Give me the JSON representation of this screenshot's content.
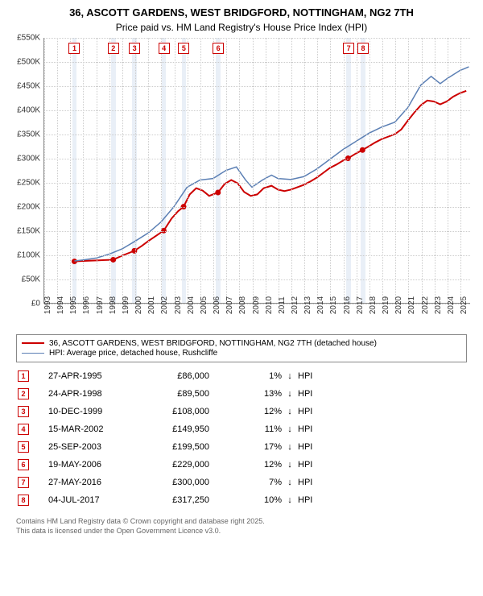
{
  "title_line1": "36, ASCOTT GARDENS, WEST BRIDGFORD, NOTTINGHAM, NG2 7TH",
  "title_line2": "Price paid vs. HM Land Registry's House Price Index (HPI)",
  "chart": {
    "type": "line",
    "background": "#ffffff",
    "grid_color": "#cccccc",
    "axis_color": "#888888",
    "ylim": [
      0,
      550000
    ],
    "y_ticks": [
      0,
      50000,
      100000,
      150000,
      200000,
      250000,
      300000,
      350000,
      400000,
      450000,
      500000,
      550000
    ],
    "y_tick_labels": [
      "£0",
      "£50K",
      "£100K",
      "£150K",
      "£200K",
      "£250K",
      "£300K",
      "£350K",
      "£400K",
      "£450K",
      "£500K",
      "£550K"
    ],
    "x_min_year": 1993,
    "x_max_year": 2025.8,
    "x_tick_years": [
      1993,
      1994,
      1995,
      1996,
      1997,
      1998,
      1999,
      2000,
      2001,
      2002,
      2003,
      2004,
      2005,
      2006,
      2007,
      2008,
      2009,
      2010,
      2011,
      2012,
      2013,
      2014,
      2015,
      2016,
      2017,
      2018,
      2019,
      2020,
      2021,
      2022,
      2023,
      2024,
      2025
    ],
    "sale_band_color": "#dbe5f1",
    "sale_band_width_years": 0.35,
    "series": [
      {
        "name": "price_paid",
        "color": "#cc0000",
        "width": 2,
        "points": [
          [
            1995.32,
            86000
          ],
          [
            1996.0,
            87000
          ],
          [
            1997.0,
            88000
          ],
          [
            1998.31,
            89500
          ],
          [
            1999.0,
            98000
          ],
          [
            1999.94,
            108000
          ],
          [
            2000.5,
            118000
          ],
          [
            2001.0,
            128000
          ],
          [
            2002.2,
            149950
          ],
          [
            2002.8,
            175000
          ],
          [
            2003.3,
            190000
          ],
          [
            2003.73,
            199500
          ],
          [
            2004.2,
            225000
          ],
          [
            2004.7,
            238000
          ],
          [
            2005.2,
            233000
          ],
          [
            2005.7,
            222000
          ],
          [
            2006.38,
            229000
          ],
          [
            2006.9,
            247000
          ],
          [
            2007.4,
            255000
          ],
          [
            2007.9,
            248000
          ],
          [
            2008.4,
            230000
          ],
          [
            2008.9,
            222000
          ],
          [
            2009.4,
            225000
          ],
          [
            2009.9,
            238000
          ],
          [
            2010.5,
            243000
          ],
          [
            2011.0,
            235000
          ],
          [
            2011.5,
            232000
          ],
          [
            2012.0,
            235000
          ],
          [
            2012.5,
            240000
          ],
          [
            2013.0,
            245000
          ],
          [
            2013.5,
            252000
          ],
          [
            2014.0,
            260000
          ],
          [
            2014.5,
            270000
          ],
          [
            2015.0,
            280000
          ],
          [
            2015.5,
            287000
          ],
          [
            2016.0,
            295000
          ],
          [
            2016.4,
            300000
          ],
          [
            2017.0,
            310000
          ],
          [
            2017.51,
            317250
          ],
          [
            2018.0,
            325000
          ],
          [
            2018.5,
            333000
          ],
          [
            2019.0,
            340000
          ],
          [
            2019.5,
            345000
          ],
          [
            2020.0,
            350000
          ],
          [
            2020.5,
            360000
          ],
          [
            2021.0,
            378000
          ],
          [
            2021.5,
            395000
          ],
          [
            2022.0,
            410000
          ],
          [
            2022.5,
            420000
          ],
          [
            2023.0,
            418000
          ],
          [
            2023.5,
            412000
          ],
          [
            2024.0,
            418000
          ],
          [
            2024.5,
            428000
          ],
          [
            2025.0,
            435000
          ],
          [
            2025.5,
            440000
          ]
        ],
        "sale_markers": [
          [
            1995.32,
            86000
          ],
          [
            1998.31,
            89500
          ],
          [
            1999.94,
            108000
          ],
          [
            2002.2,
            149950
          ],
          [
            2003.73,
            199500
          ],
          [
            2006.38,
            229000
          ],
          [
            2016.4,
            300000
          ],
          [
            2017.51,
            317250
          ]
        ]
      },
      {
        "name": "hpi",
        "color": "#5b7fb4",
        "width": 1.5,
        "points": [
          [
            1995.32,
            87000
          ],
          [
            1996.0,
            89000
          ],
          [
            1997.0,
            93000
          ],
          [
            1998.0,
            101000
          ],
          [
            1999.0,
            112000
          ],
          [
            2000.0,
            128000
          ],
          [
            2001.0,
            145000
          ],
          [
            2002.0,
            168000
          ],
          [
            2003.0,
            200000
          ],
          [
            2004.0,
            240000
          ],
          [
            2005.0,
            255000
          ],
          [
            2006.0,
            258000
          ],
          [
            2007.0,
            275000
          ],
          [
            2007.8,
            282000
          ],
          [
            2008.5,
            255000
          ],
          [
            2009.0,
            240000
          ],
          [
            2009.8,
            255000
          ],
          [
            2010.5,
            265000
          ],
          [
            2011.0,
            258000
          ],
          [
            2012.0,
            256000
          ],
          [
            2013.0,
            262000
          ],
          [
            2014.0,
            278000
          ],
          [
            2015.0,
            298000
          ],
          [
            2016.0,
            318000
          ],
          [
            2017.0,
            335000
          ],
          [
            2018.0,
            352000
          ],
          [
            2019.0,
            365000
          ],
          [
            2020.0,
            375000
          ],
          [
            2021.0,
            405000
          ],
          [
            2022.0,
            452000
          ],
          [
            2022.8,
            470000
          ],
          [
            2023.5,
            455000
          ],
          [
            2024.0,
            465000
          ],
          [
            2025.0,
            482000
          ],
          [
            2025.7,
            490000
          ]
        ]
      }
    ],
    "number_boxes": [
      {
        "n": "1",
        "year": 1995.32
      },
      {
        "n": "2",
        "year": 1998.31
      },
      {
        "n": "3",
        "year": 1999.94
      },
      {
        "n": "4",
        "year": 2002.2
      },
      {
        "n": "5",
        "year": 2003.73
      },
      {
        "n": "6",
        "year": 2006.38
      },
      {
        "n": "7",
        "year": 2016.4
      },
      {
        "n": "8",
        "year": 2017.51
      }
    ]
  },
  "legend": {
    "item1": {
      "color": "#cc0000",
      "width": 2,
      "label": "36, ASCOTT GARDENS, WEST BRIDGFORD, NOTTINGHAM, NG2 7TH (detached house)"
    },
    "item2": {
      "color": "#5b7fb4",
      "width": 1.5,
      "label": "HPI: Average price, detached house, Rushcliffe"
    }
  },
  "sales": [
    {
      "n": "1",
      "date": "27-APR-1995",
      "price": "£86,000",
      "pct": "1%",
      "arrow": "↓",
      "vs": "HPI"
    },
    {
      "n": "2",
      "date": "24-APR-1998",
      "price": "£89,500",
      "pct": "13%",
      "arrow": "↓",
      "vs": "HPI"
    },
    {
      "n": "3",
      "date": "10-DEC-1999",
      "price": "£108,000",
      "pct": "12%",
      "arrow": "↓",
      "vs": "HPI"
    },
    {
      "n": "4",
      "date": "15-MAR-2002",
      "price": "£149,950",
      "pct": "11%",
      "arrow": "↓",
      "vs": "HPI"
    },
    {
      "n": "5",
      "date": "25-SEP-2003",
      "price": "£199,500",
      "pct": "17%",
      "arrow": "↓",
      "vs": "HPI"
    },
    {
      "n": "6",
      "date": "19-MAY-2006",
      "price": "£229,000",
      "pct": "12%",
      "arrow": "↓",
      "vs": "HPI"
    },
    {
      "n": "7",
      "date": "27-MAY-2016",
      "price": "£300,000",
      "pct": "7%",
      "arrow": "↓",
      "vs": "HPI"
    },
    {
      "n": "8",
      "date": "04-JUL-2017",
      "price": "£317,250",
      "pct": "10%",
      "arrow": "↓",
      "vs": "HPI"
    }
  ],
  "footer_line1": "Contains HM Land Registry data © Crown copyright and database right 2025.",
  "footer_line2": "This data is licensed under the Open Government Licence v3.0."
}
